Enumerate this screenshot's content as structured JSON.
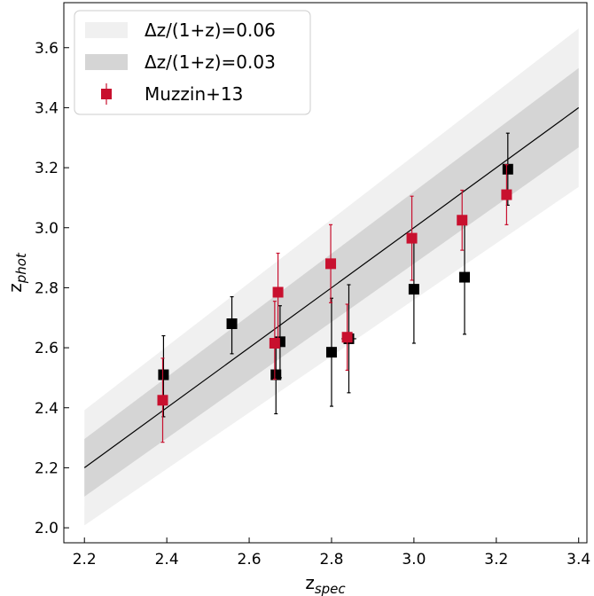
{
  "chart_data": {
    "type": "scatter",
    "xlabel": "z",
    "xlabel_sub": "spec",
    "ylabel": "z",
    "ylabel_sub": "phot",
    "xlim": [
      2.15,
      3.42
    ],
    "ylim": [
      1.95,
      3.75
    ],
    "xticks": [
      "2.2",
      "2.4",
      "2.6",
      "2.8",
      "3.0",
      "3.2",
      "3.4"
    ],
    "yticks": [
      "2.0",
      "2.2",
      "2.4",
      "2.6",
      "2.8",
      "3.0",
      "3.2",
      "3.4",
      "3.6"
    ],
    "one_to_one_line": {
      "x": [
        2.2,
        3.4
      ],
      "y": [
        2.2,
        3.4
      ]
    },
    "bands": [
      {
        "name": "Δz/(1+z)=0.06",
        "dz": 0.06,
        "color": "#f0f0f0"
      },
      {
        "name": "Δz/(1+z)=0.03",
        "dz": 0.03,
        "color": "#d5d5d5"
      }
    ],
    "legend_position": "top-left",
    "series": [
      {
        "name": "",
        "color": "#000000",
        "points": [
          {
            "x": 2.392,
            "y": 2.51,
            "yerr_lo": 0.14,
            "yerr_hi": 0.13
          },
          {
            "x": 2.558,
            "y": 2.68,
            "yerr_lo": 0.1,
            "yerr_hi": 0.09
          },
          {
            "x": 2.665,
            "y": 2.51,
            "yerr_lo": 0.13,
            "yerr_hi": 0.09
          },
          {
            "x": 2.675,
            "y": 2.62,
            "yerr_lo": 0.12,
            "yerr_hi": 0.12
          },
          {
            "x": 2.8,
            "y": 2.585,
            "yerr_lo": 0.18,
            "yerr_hi": 0.18
          },
          {
            "x": 2.842,
            "y": 2.63,
            "yerr_lo": 0.18,
            "yerr_hi": 0.18,
            "xerr": 0.018
          },
          {
            "x": 3.0,
            "y": 2.795,
            "yerr_lo": 0.18,
            "yerr_hi": 0.18
          },
          {
            "x": 3.123,
            "y": 2.835,
            "yerr_lo": 0.19,
            "yerr_hi": 0.19
          },
          {
            "x": 3.228,
            "y": 3.195,
            "yerr_lo": 0.12,
            "yerr_hi": 0.12
          }
        ]
      },
      {
        "name": "Muzzin+13",
        "color": "#c8102e",
        "points": [
          {
            "x": 2.39,
            "y": 2.425,
            "yerr_lo": 0.14,
            "yerr_hi": 0.14
          },
          {
            "x": 2.662,
            "y": 2.615,
            "yerr_lo": 0.12,
            "yerr_hi": 0.14
          },
          {
            "x": 2.67,
            "y": 2.785,
            "yerr_lo": 0.17,
            "yerr_hi": 0.13
          },
          {
            "x": 2.798,
            "y": 2.88,
            "yerr_lo": 0.13,
            "yerr_hi": 0.13
          },
          {
            "x": 2.838,
            "y": 2.635,
            "yerr_lo": 0.11,
            "yerr_hi": 0.11
          },
          {
            "x": 2.995,
            "y": 2.965,
            "yerr_lo": 0.14,
            "yerr_hi": 0.14
          },
          {
            "x": 3.117,
            "y": 3.025,
            "yerr_lo": 0.1,
            "yerr_hi": 0.1
          },
          {
            "x": 3.225,
            "y": 3.11,
            "yerr_lo": 0.1,
            "yerr_hi": 0.1
          }
        ]
      }
    ]
  }
}
